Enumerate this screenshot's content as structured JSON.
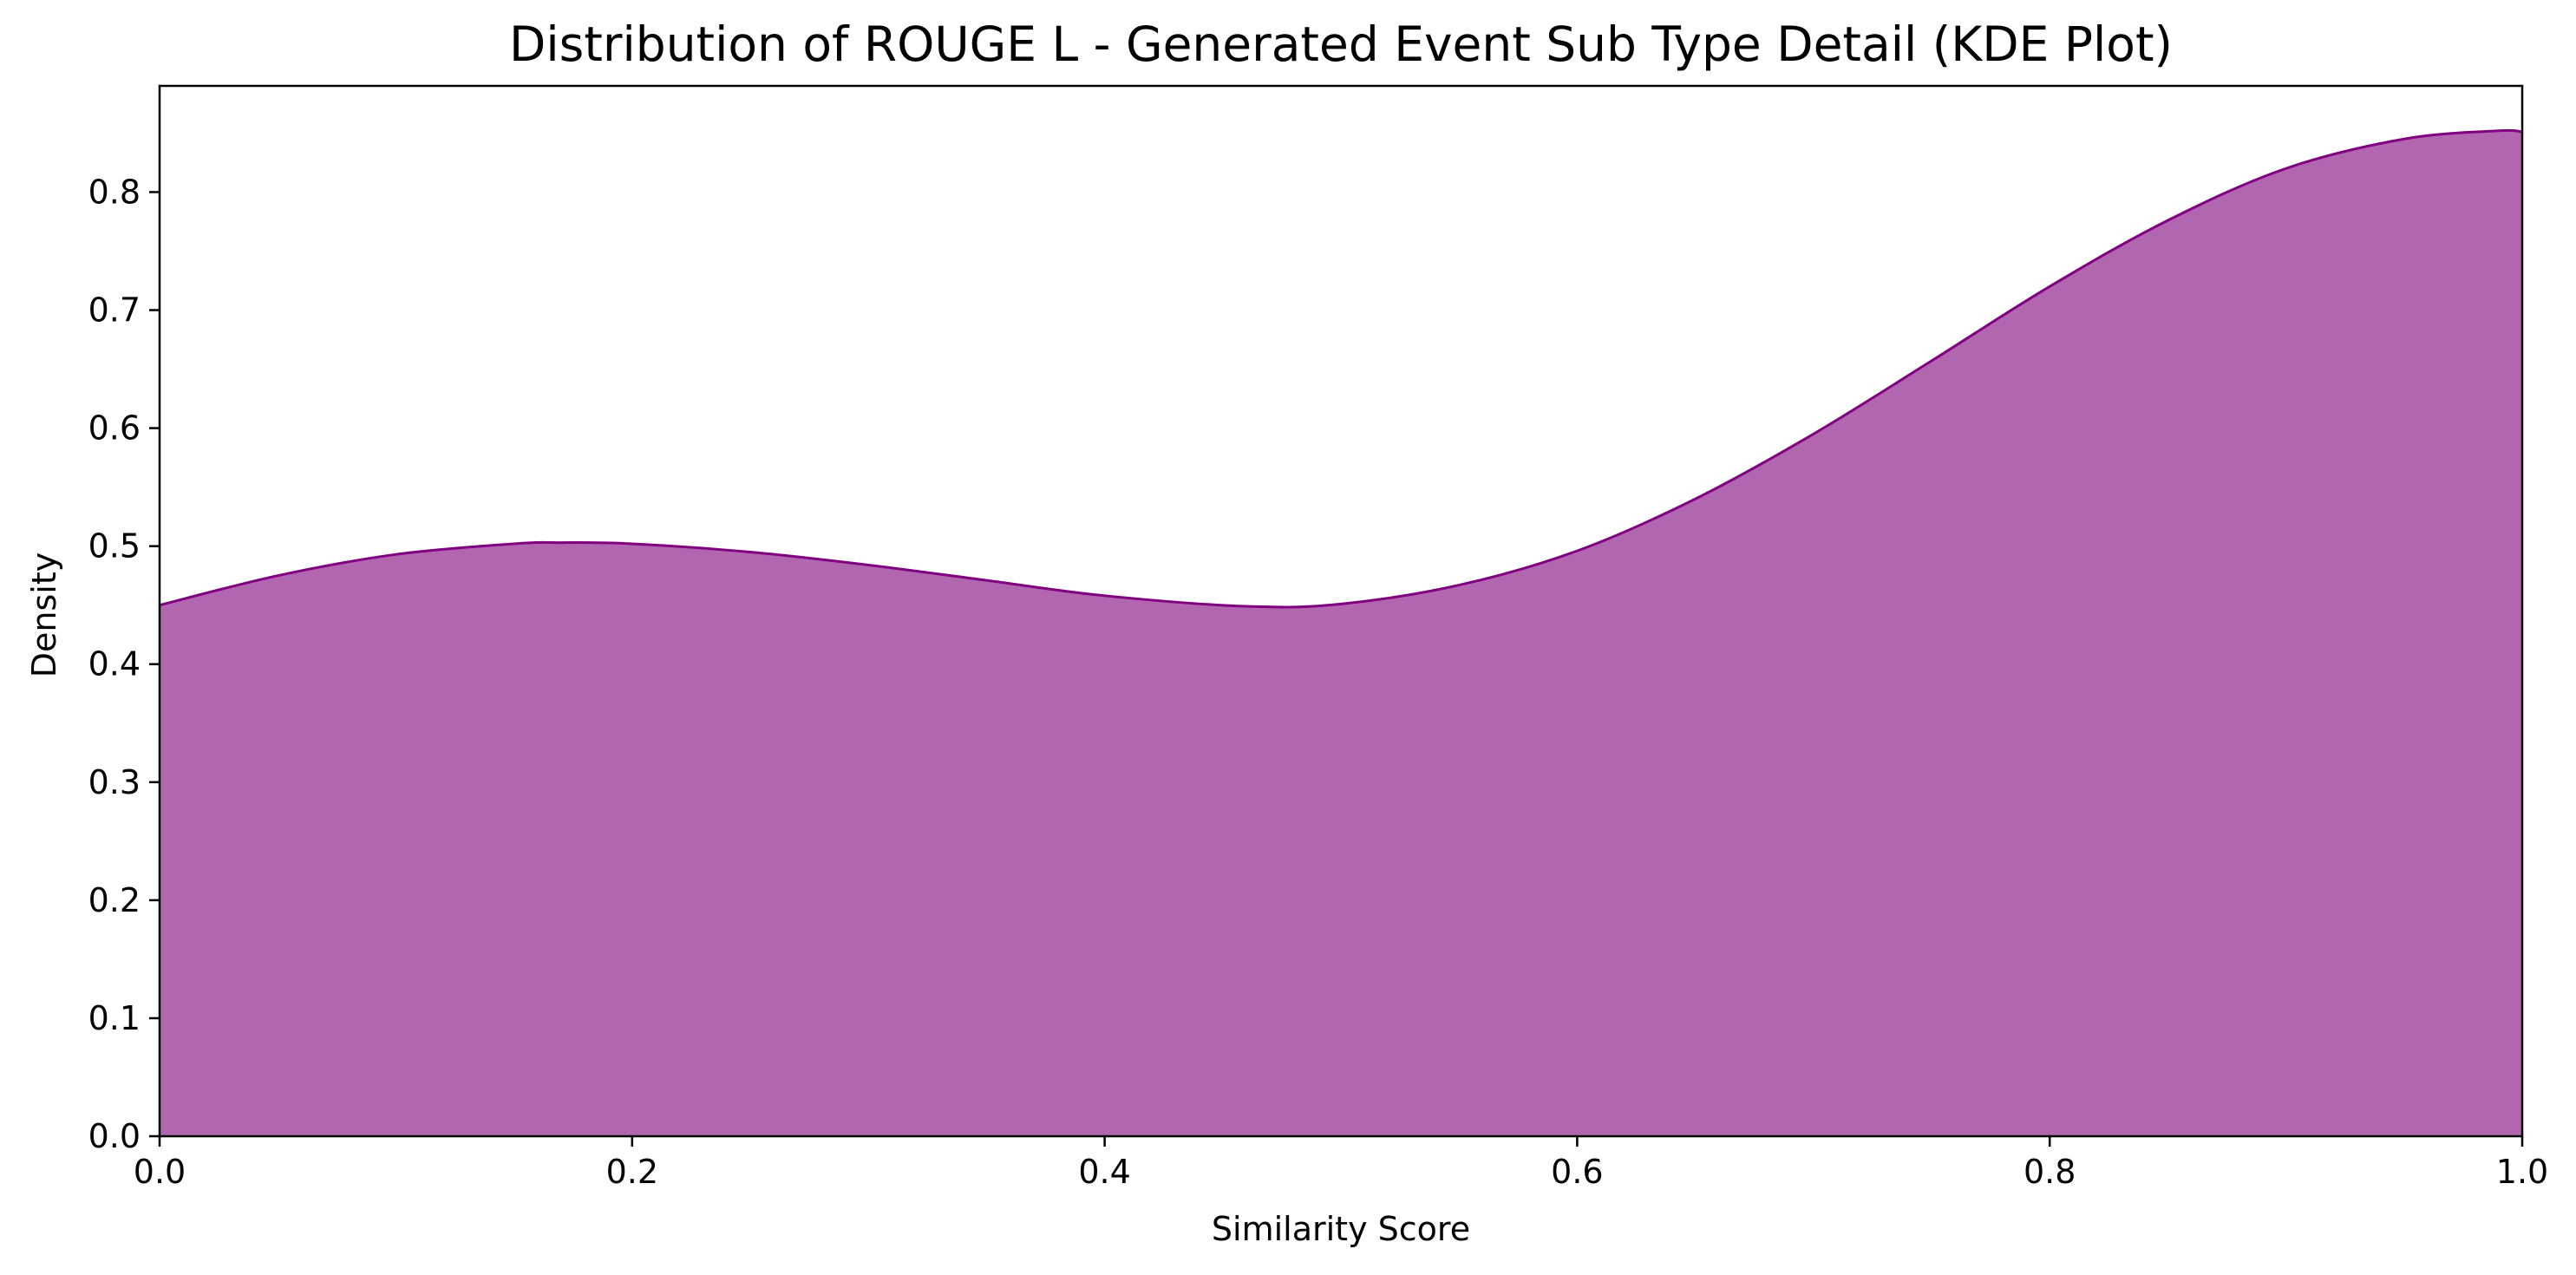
{
  "chart_data": {
    "type": "area",
    "title": "Distribution of ROUGE L - Generated Event Sub Type Detail (KDE Plot)",
    "xlabel": "Similarity Score",
    "ylabel": "Density",
    "xlim": [
      0.0,
      1.0
    ],
    "ylim": [
      0.0,
      0.89
    ],
    "x_ticks": [
      "0.0",
      "0.2",
      "0.4",
      "0.6",
      "0.8",
      "1.0"
    ],
    "y_ticks": [
      "0.0",
      "0.1",
      "0.2",
      "0.3",
      "0.4",
      "0.5",
      "0.6",
      "0.7",
      "0.8"
    ],
    "grid": false,
    "legend": "none",
    "colors": {
      "fill": "#b266b0",
      "line": "#800080"
    },
    "series": [
      {
        "x": [
          0.0,
          0.05,
          0.1,
          0.15,
          0.17,
          0.2,
          0.25,
          0.3,
          0.35,
          0.4,
          0.46,
          0.5,
          0.55,
          0.6,
          0.65,
          0.7,
          0.75,
          0.8,
          0.85,
          0.9,
          0.95,
          0.99,
          1.0
        ],
        "y": [
          0.45,
          0.475,
          0.493,
          0.502,
          0.503,
          0.502,
          0.495,
          0.484,
          0.471,
          0.458,
          0.449,
          0.451,
          0.467,
          0.496,
          0.54,
          0.595,
          0.657,
          0.72,
          0.776,
          0.82,
          0.845,
          0.852,
          0.851
        ]
      }
    ]
  }
}
